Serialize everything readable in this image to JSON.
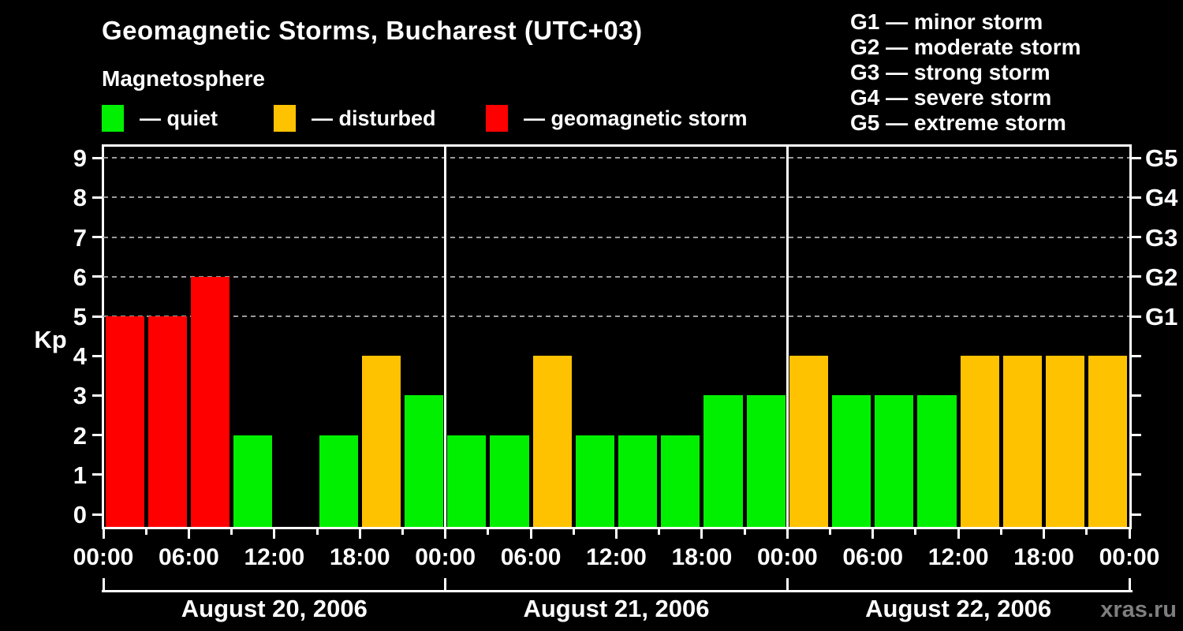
{
  "title": "Geomagnetic Storms, Bucharest (UTC+03)",
  "subtitle": "Magnetosphere",
  "legend": {
    "items": [
      {
        "name": "quiet",
        "label": "— quiet",
        "color": "#00f000"
      },
      {
        "name": "disturbed",
        "label": "— disturbed",
        "color": "#ffc200"
      },
      {
        "name": "storm",
        "label": "— geomagnetic storm",
        "color": "#ff0000"
      }
    ]
  },
  "storm_scale_legend": [
    "G1 — minor storm",
    "G2 — moderate storm",
    "G3 — strong storm",
    "G4 — severe storm",
    "G5 — extreme storm"
  ],
  "watermark": "xras.ru",
  "chart_data": {
    "type": "bar",
    "title": "Geomagnetic Storms, Bucharest (UTC+03)",
    "subtitle": "Magnetosphere",
    "ylabel": "Kp",
    "ylim": [
      0,
      9.4
    ],
    "yticks": [
      0,
      1,
      2,
      3,
      4,
      5,
      6,
      7,
      8,
      9
    ],
    "right_axis": [
      {
        "kp": 5,
        "label": "G1"
      },
      {
        "kp": 6,
        "label": "G2"
      },
      {
        "kp": 7,
        "label": "G3"
      },
      {
        "kp": 8,
        "label": "G4"
      },
      {
        "kp": 9,
        "label": "G5"
      }
    ],
    "gridlines_at_kp": [
      5,
      6,
      7,
      8,
      9
    ],
    "grid": "dashed horizontal at storm levels only",
    "legend_position": "top-left and top-right",
    "bar_interval_hours": 3,
    "x_tick_labels": [
      "00:00",
      "06:00",
      "12:00",
      "18:00",
      "00:00",
      "06:00",
      "12:00",
      "18:00",
      "00:00",
      "06:00",
      "12:00",
      "18:00",
      "00:00"
    ],
    "days": [
      {
        "date": "August 20, 2006",
        "kp_values": [
          5,
          5,
          6,
          2,
          0,
          2,
          4,
          3
        ]
      },
      {
        "date": "August 21, 2006",
        "kp_values": [
          2,
          2,
          4,
          2,
          2,
          2,
          3,
          3
        ]
      },
      {
        "date": "August 22, 2006",
        "kp_values": [
          4,
          3,
          3,
          3,
          4,
          4,
          4,
          4
        ]
      }
    ],
    "series_colors": {
      "quiet": "#00f000",
      "disturbed": "#ffc200",
      "storm": "#ff0000"
    },
    "color_rule": {
      "quiet_kp_max": 3,
      "disturbed_kp": 4,
      "storm_kp_min": 5
    }
  }
}
